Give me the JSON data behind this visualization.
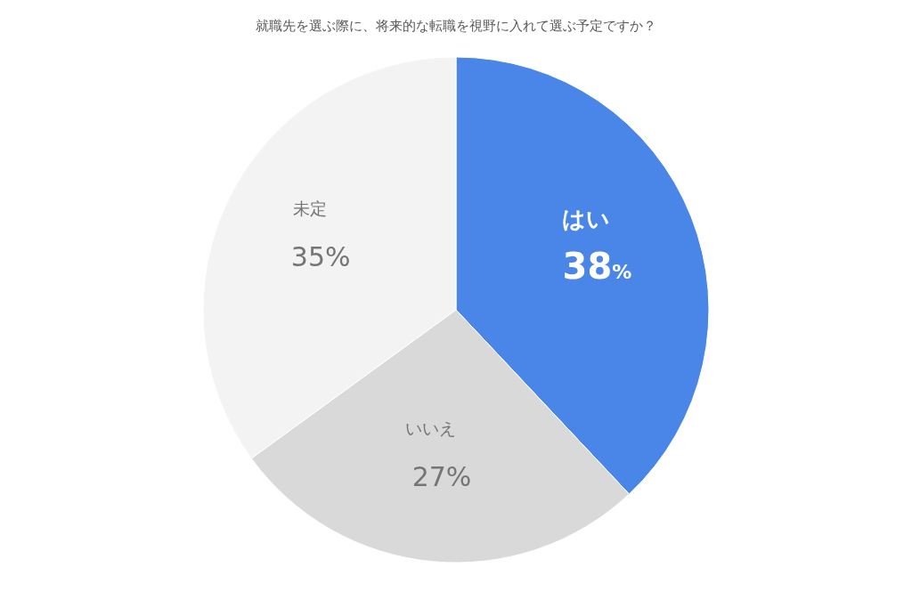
{
  "chart_data": {
    "type": "pie",
    "title": "就職先を選ぶ際に、将来的な転職を視野に入れて選ぶ予定ですか？",
    "categories": [
      "はい",
      "いいえ",
      "未定"
    ],
    "values": [
      38,
      27,
      35
    ],
    "colors": [
      "#4a86e8",
      "#d9d9d9",
      "#f3f3f3"
    ],
    "value_labels": [
      "38%",
      "27%",
      "35%"
    ]
  }
}
